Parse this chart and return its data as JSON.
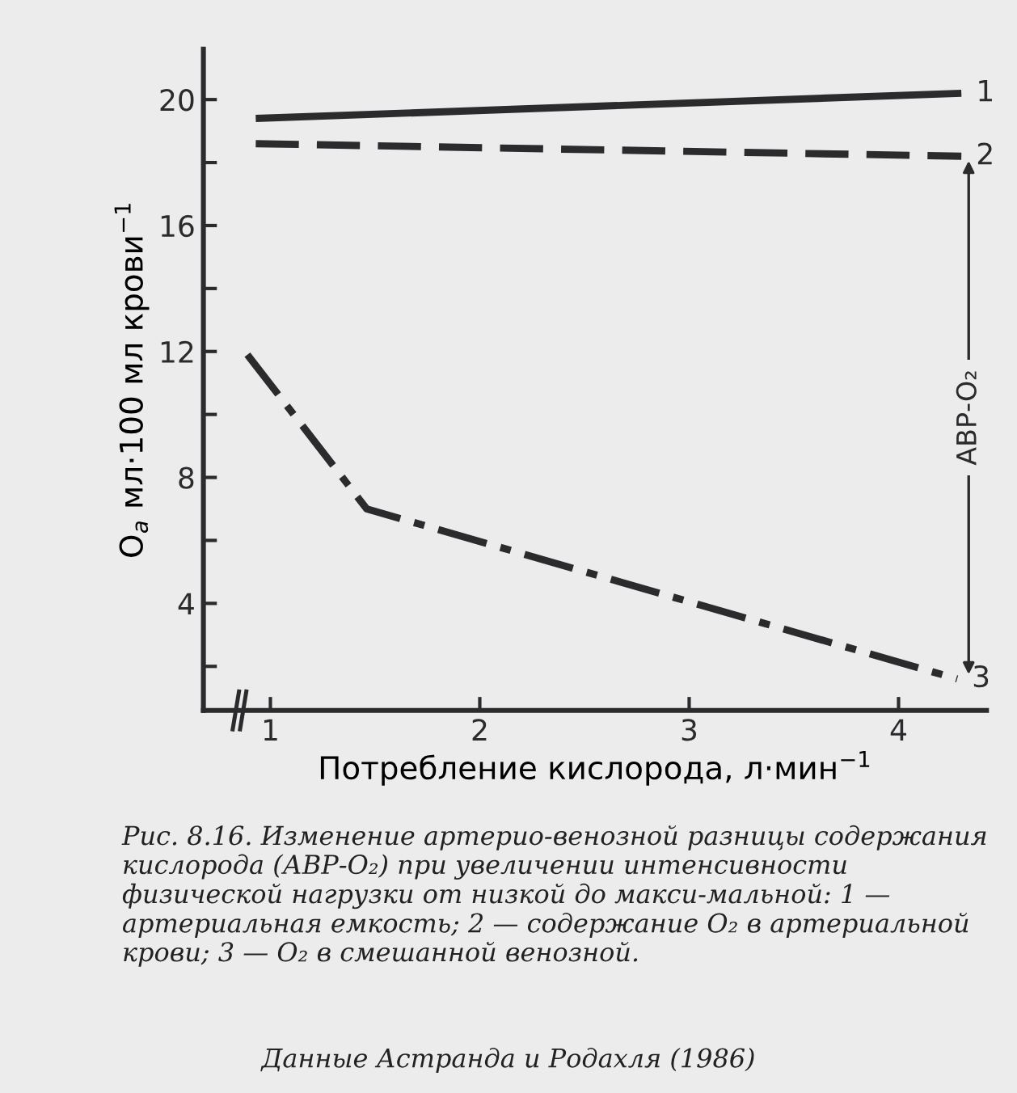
{
  "chart_data": {
    "type": "line",
    "xlabel": "Потребление кислорода, л·мин$^{−1}$",
    "ylabel": "O$_{а}$ мл·100 мл крови$^{−1}$",
    "xlim": [
      0.68,
      4.42
    ],
    "xticks": [
      1,
      2,
      3,
      4
    ],
    "ylim": [
      0.6,
      21.6
    ],
    "yticks": [
      {
        "value": 2,
        "label": null
      },
      4,
      {
        "value": 6,
        "label": null
      },
      8,
      {
        "value": 10,
        "label": null
      },
      12,
      {
        "value": 14,
        "label": null
      },
      16,
      {
        "value": 18,
        "label": null
      },
      20
    ],
    "grid": false,
    "legend": "right",
    "marker": "none",
    "series": [
      {
        "name": "1",
        "color": "#2b2b2e",
        "line_style": "solid",
        "x": [
          0.93,
          4.3
        ],
        "values": [
          19.4,
          20.2
        ]
      },
      {
        "name": "2",
        "color": "#2b2b2e",
        "line_style": "dashed",
        "x": [
          0.93,
          4.3
        ],
        "values": [
          18.6,
          18.2
        ]
      },
      {
        "name": "3",
        "color": "#2b2b2e",
        "line_style": "dashdot",
        "x": [
          0.89,
          1.46,
          4.28
        ],
        "values": [
          11.9,
          7.0,
          1.6
        ]
      }
    ],
    "annotations": [
      "АВР-O₂",
      "Рис. 8.16. Изменение артерио-венозной разницы содержания кислорода (АВР-O₂) при увеличении интенсивности физической нагрузки от низкой до макси-мальной: 1 — артериальная емкость; 2 — содержание O₂ в артериальной крови; 3 — O₂ в смешанной венозной.",
      "Данные Астранда и Родахля (1986)"
    ]
  }
}
